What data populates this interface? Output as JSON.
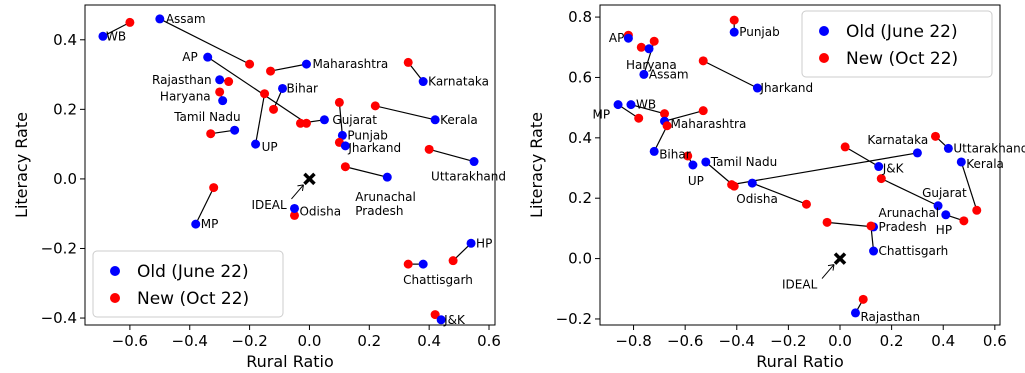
{
  "colors": {
    "old": "#0000ff",
    "new": "#ff0000",
    "line": "#000000",
    "ideal": "#000000"
  },
  "chart_data": [
    {
      "type": "scatter",
      "xlabel": "Rural Ratio",
      "ylabel": "Literacy Rate",
      "xlim": [
        -0.75,
        0.62
      ],
      "ylim": [
        -0.42,
        0.5
      ],
      "xticks": [
        -0.6,
        -0.4,
        -0.2,
        0.0,
        0.2,
        0.4,
        0.6
      ],
      "yticks": [
        -0.4,
        -0.2,
        0.0,
        0.2,
        0.4
      ],
      "xtick_labels": [
        "−0.6",
        "−0.4",
        "−0.2",
        "0.0",
        "0.2",
        "0.4",
        "0.6"
      ],
      "ytick_labels": [
        "−0.4",
        "−0.2",
        "0.0",
        "0.2",
        "0.4"
      ],
      "legend": {
        "placement": "lower-left",
        "old_label": "Old (June 22)",
        "new_label": "New (Oct 22)"
      },
      "ideal": {
        "label": "IDEAL",
        "x": 0.0,
        "y": 0.0
      },
      "states": [
        {
          "name": "WB",
          "old": [
            -0.69,
            0.41
          ],
          "new": [
            -0.6,
            0.45
          ]
        },
        {
          "name": "Assam",
          "old": [
            -0.5,
            0.46
          ],
          "new": [
            -0.2,
            0.33
          ]
        },
        {
          "name": "AP",
          "old": [
            -0.34,
            0.35
          ],
          "new": [
            -0.01,
            0.16
          ]
        },
        {
          "name": "Maharashtra",
          "old": [
            -0.01,
            0.33
          ],
          "new": [
            -0.13,
            0.31
          ]
        },
        {
          "name": "Rajasthan",
          "old": [
            -0.3,
            0.285
          ],
          "new": [
            -0.27,
            0.28
          ]
        },
        {
          "name": "Haryana",
          "old": [
            -0.29,
            0.225
          ],
          "new": [
            -0.3,
            0.25
          ]
        },
        {
          "name": "Bihar",
          "old": [
            -0.09,
            0.26
          ],
          "new": [
            -0.12,
            0.2
          ]
        },
        {
          "name": "Tamil Nadu",
          "old": [
            -0.25,
            0.14
          ],
          "new": [
            -0.33,
            0.13
          ]
        },
        {
          "name": "UP",
          "old": [
            -0.18,
            0.1
          ],
          "new": [
            -0.15,
            0.245
          ]
        },
        {
          "name": "Gujarat",
          "old": [
            0.05,
            0.17
          ],
          "new": [
            -0.03,
            0.16
          ]
        },
        {
          "name": "Punjab",
          "old": [
            0.11,
            0.125
          ],
          "new": [
            0.1,
            0.22
          ]
        },
        {
          "name": "Jharkand",
          "old": [
            0.12,
            0.095
          ],
          "new": [
            0.1,
            0.105
          ]
        },
        {
          "name": "Karnataka",
          "old": [
            0.38,
            0.28
          ],
          "new": [
            0.33,
            0.335
          ]
        },
        {
          "name": "Kerala",
          "old": [
            0.42,
            0.17
          ],
          "new": [
            0.22,
            0.21
          ]
        },
        {
          "name": "Uttarakhand",
          "old": [
            0.55,
            0.05
          ],
          "new": [
            0.4,
            0.085
          ]
        },
        {
          "name": "Arunachal\nPradesh",
          "old": [
            0.26,
            0.005
          ],
          "new": [
            0.12,
            0.035
          ]
        },
        {
          "name": "Odisha",
          "old": [
            -0.05,
            -0.085
          ],
          "new": [
            -0.05,
            -0.105
          ]
        },
        {
          "name": "MP",
          "old": [
            -0.38,
            -0.13
          ],
          "new": [
            -0.32,
            -0.025
          ]
        },
        {
          "name": "HP",
          "old": [
            0.54,
            -0.185
          ],
          "new": [
            0.48,
            -0.235
          ]
        },
        {
          "name": "Chattisgarh",
          "old": [
            0.38,
            -0.245
          ],
          "new": [
            0.33,
            -0.245
          ]
        },
        {
          "name": "J&K",
          "old": [
            0.44,
            -0.405
          ],
          "new": [
            0.42,
            -0.39
          ]
        }
      ]
    },
    {
      "type": "scatter",
      "xlabel": "Rural Ratio",
      "ylabel": "Literacy Rate",
      "xlim": [
        -0.93,
        0.62
      ],
      "ylim": [
        -0.22,
        0.84
      ],
      "xticks": [
        -0.8,
        -0.6,
        -0.4,
        -0.2,
        0.0,
        0.2,
        0.4,
        0.6
      ],
      "yticks": [
        -0.2,
        0.0,
        0.2,
        0.4,
        0.6,
        0.8
      ],
      "xtick_labels": [
        "−0.8",
        "−0.6",
        "−0.4",
        "−0.2",
        "0.0",
        "0.2",
        "0.4",
        "0.6"
      ],
      "ytick_labels": [
        "−0.2",
        "0.0",
        "0.2",
        "0.4",
        "0.6",
        "0.8"
      ],
      "legend": {
        "placement": "top-right",
        "old_label": "Old (June 22)",
        "new_label": "New (Oct 22)"
      },
      "ideal": {
        "label": "IDEAL",
        "x": 0.0,
        "y": 0.0
      },
      "states": [
        {
          "name": "Punjab",
          "old": [
            -0.41,
            0.75
          ],
          "new": [
            -0.41,
            0.79
          ]
        },
        {
          "name": "AP",
          "old": [
            -0.82,
            0.73
          ],
          "new": [
            -0.82,
            0.74
          ]
        },
        {
          "name": "Haryana",
          "old": [
            -0.74,
            0.695
          ],
          "new": [
            -0.77,
            0.7
          ]
        },
        {
          "name": "Assam",
          "old": [
            -0.76,
            0.61
          ],
          "new": [
            -0.72,
            0.72
          ]
        },
        {
          "name": "Jharkand",
          "old": [
            -0.32,
            0.565
          ],
          "new": [
            -0.53,
            0.655
          ]
        },
        {
          "name": "WB",
          "old": [
            -0.81,
            0.51
          ],
          "new": [
            -0.68,
            0.48
          ]
        },
        {
          "name": "MP",
          "old": [
            -0.86,
            0.51
          ],
          "new": [
            -0.78,
            0.465
          ]
        },
        {
          "name": "Maharashtra",
          "old": [
            -0.68,
            0.455
          ],
          "new": [
            -0.53,
            0.49
          ]
        },
        {
          "name": "Bihar",
          "old": [
            -0.72,
            0.355
          ],
          "new": [
            -0.67,
            0.44
          ]
        },
        {
          "name": "Tamil Nadu",
          "old": [
            -0.52,
            0.32
          ],
          "new": [
            -0.41,
            0.24
          ]
        },
        {
          "name": "UP",
          "old": [
            -0.57,
            0.31
          ],
          "new": [
            -0.59,
            0.34
          ]
        },
        {
          "name": "Odisha",
          "old": [
            -0.34,
            0.25
          ],
          "new": [
            -0.13,
            0.18
          ]
        },
        {
          "name": "Karnataka",
          "old": [
            0.3,
            0.35
          ],
          "new": [
            -0.42,
            0.245
          ]
        },
        {
          "name": "Uttarakhand",
          "old": [
            0.42,
            0.365
          ],
          "new": [
            0.37,
            0.405
          ]
        },
        {
          "name": "J&K",
          "old": [
            0.15,
            0.305
          ],
          "new": [
            0.02,
            0.37
          ]
        },
        {
          "name": "Kerala",
          "old": [
            0.47,
            0.32
          ],
          "new": [
            0.53,
            0.16
          ]
        },
        {
          "name": "Gujarat",
          "old": [
            0.38,
            0.175
          ],
          "new": [
            0.16,
            0.265
          ]
        },
        {
          "name": "HP",
          "old": [
            0.41,
            0.145
          ],
          "new": [
            0.48,
            0.125
          ]
        },
        {
          "name": "Arunachal\nPradesh",
          "old": [
            0.13,
            0.105
          ],
          "new": [
            -0.05,
            0.12
          ]
        },
        {
          "name": "Chattisgarh",
          "old": [
            0.13,
            0.025
          ],
          "new": [
            0.12,
            0.108
          ]
        },
        {
          "name": "Rajasthan",
          "old": [
            0.06,
            -0.18
          ],
          "new": [
            0.09,
            -0.135
          ]
        }
      ]
    }
  ]
}
